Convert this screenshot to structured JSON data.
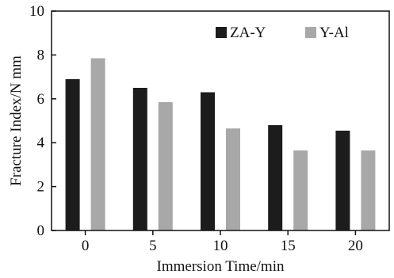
{
  "chart_data": {
    "type": "bar",
    "categories": [
      "0",
      "5",
      "10",
      "15",
      "20"
    ],
    "series": [
      {
        "name": "ZA-Y",
        "values": [
          6.9,
          6.5,
          6.3,
          4.8,
          4.55
        ],
        "color": "#1c1c1c"
      },
      {
        "name": "Y-Al",
        "values": [
          7.85,
          5.85,
          4.65,
          3.65,
          3.65
        ],
        "color": "#a8a8a8"
      }
    ],
    "xlabel": "Immersion Time/min",
    "ylabel": "Fracture Index/N mm",
    "ylim": [
      0,
      10
    ],
    "yticks": [
      "0",
      "2",
      "4",
      "6",
      "8",
      "10"
    ],
    "grid": false,
    "legend_position": "top-right"
  }
}
